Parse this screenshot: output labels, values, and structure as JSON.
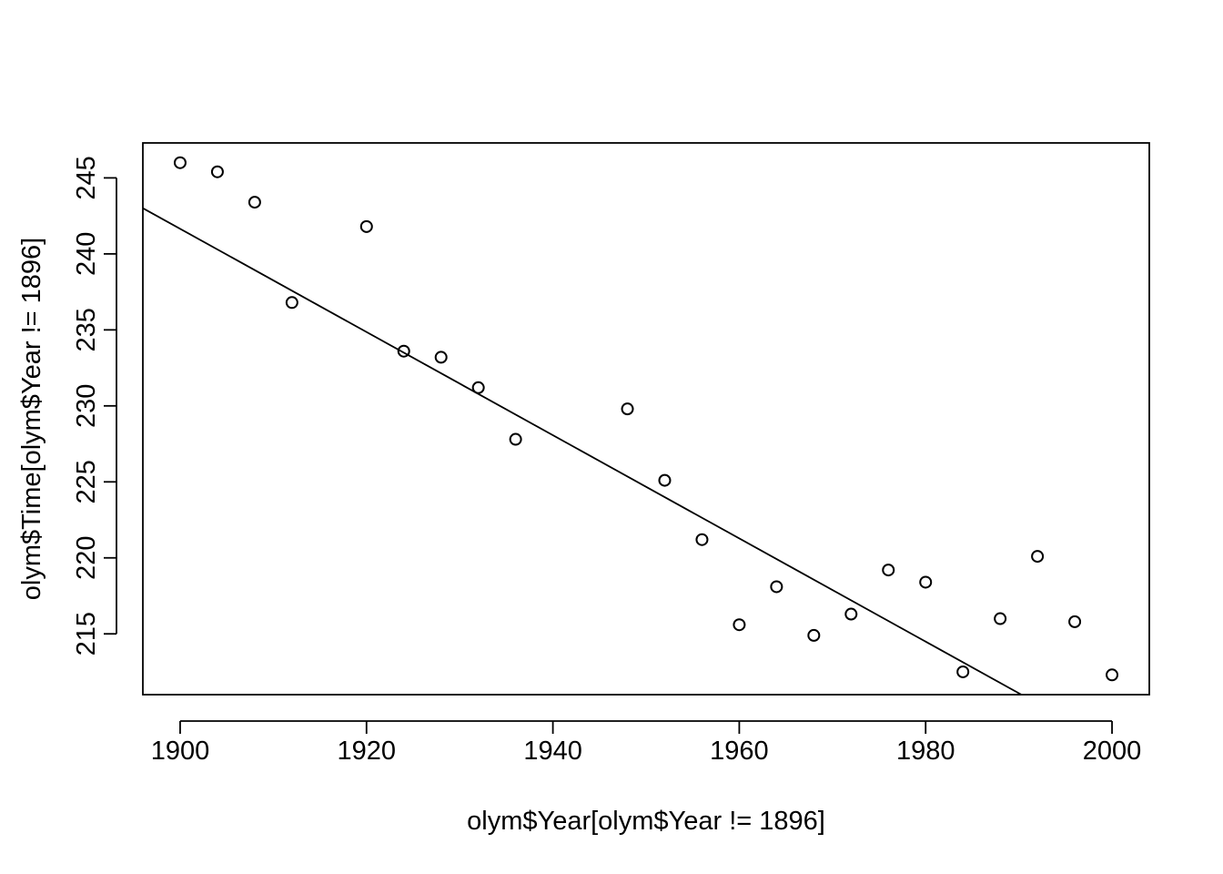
{
  "chart_data": {
    "type": "scatter",
    "title": "",
    "xlabel": "olym$Year[olym$Year != 1896]",
    "ylabel": "olym$Time[olym$Year != 1896]",
    "xlim": [
      1896,
      2004
    ],
    "ylim": [
      211,
      247.3
    ],
    "x_ticks": [
      1900,
      1920,
      1940,
      1960,
      1980,
      2000
    ],
    "y_ticks": [
      215,
      220,
      225,
      230,
      235,
      240,
      245
    ],
    "grid": false,
    "legend": "none",
    "points": [
      {
        "x": 1900,
        "y": 246.0
      },
      {
        "x": 1904,
        "y": 245.4
      },
      {
        "x": 1908,
        "y": 243.4
      },
      {
        "x": 1912,
        "y": 236.8
      },
      {
        "x": 1920,
        "y": 241.8
      },
      {
        "x": 1924,
        "y": 233.6
      },
      {
        "x": 1928,
        "y": 233.2
      },
      {
        "x": 1932,
        "y": 231.2
      },
      {
        "x": 1936,
        "y": 227.8
      },
      {
        "x": 1948,
        "y": 229.8
      },
      {
        "x": 1952,
        "y": 225.1
      },
      {
        "x": 1956,
        "y": 221.2
      },
      {
        "x": 1960,
        "y": 215.6
      },
      {
        "x": 1964,
        "y": 218.1
      },
      {
        "x": 1968,
        "y": 214.9
      },
      {
        "x": 1972,
        "y": 216.3
      },
      {
        "x": 1976,
        "y": 219.2
      },
      {
        "x": 1980,
        "y": 218.4
      },
      {
        "x": 1984,
        "y": 212.5
      },
      {
        "x": 1988,
        "y": 216.0
      },
      {
        "x": 1992,
        "y": 220.1
      },
      {
        "x": 1996,
        "y": 215.8
      },
      {
        "x": 2000,
        "y": 212.3
      }
    ],
    "fit_line": {
      "intercept": 886.7,
      "slope": -0.3395
    }
  }
}
